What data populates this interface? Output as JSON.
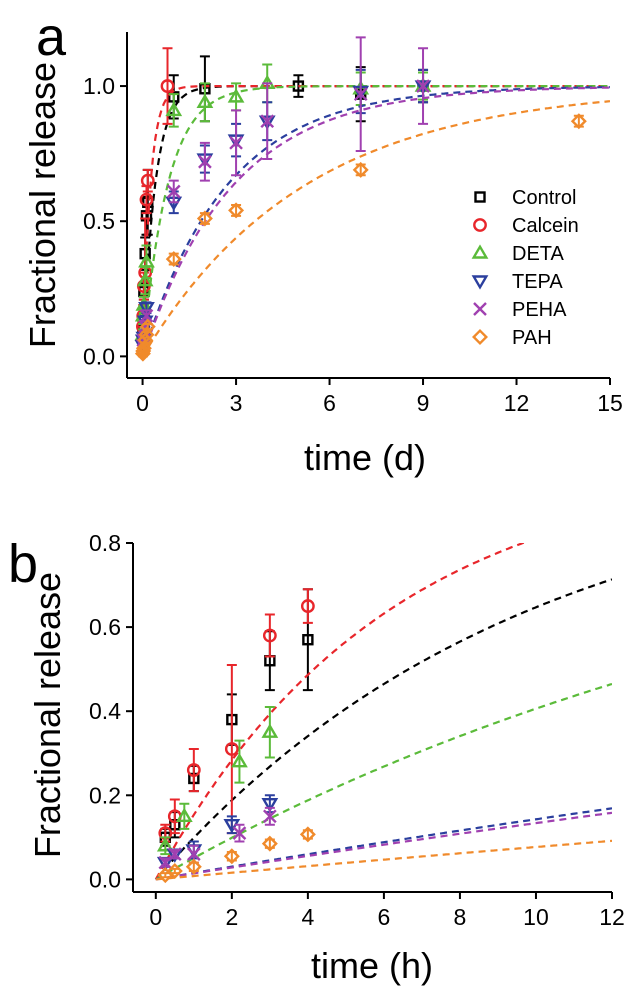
{
  "chart_data": [
    {
      "type": "scatter",
      "panel": "a",
      "xlabel": "time (d)",
      "ylabel": "Fractional release",
      "xlim": [
        -0.5,
        15
      ],
      "ylim": [
        -0.08,
        1.2
      ],
      "xticks": [
        0,
        3,
        6,
        9,
        12,
        15
      ],
      "yticks": [
        0.0,
        0.5,
        1.0
      ],
      "ytick_labels": [
        "0.0",
        "0.5",
        "1.0"
      ],
      "legend": {
        "placement": "right",
        "entries": [
          "Control",
          "Calcein",
          "DETA",
          "TEPA",
          "PEHA",
          "PAH"
        ]
      },
      "series": [
        {
          "name": "Control",
          "color": "#000000",
          "marker": "square",
          "x": [
            0.0104,
            0.0208,
            0.0417,
            0.0833,
            0.125,
            0.1667,
            1,
            2,
            5,
            7,
            9
          ],
          "y": [
            0.1,
            0.13,
            0.24,
            0.38,
            0.52,
            0.57,
            0.96,
            0.99,
            1.0,
            0.97,
            1.0
          ],
          "err": [
            0.02,
            0.03,
            0.03,
            0.06,
            0.07,
            0.12,
            0.08,
            0.12,
            0.04,
            0.1,
            0.06
          ],
          "fit": "0:0.40"
        },
        {
          "name": "Calcein",
          "color": "#e8262b",
          "marker": "circle",
          "x": [
            0.0104,
            0.0208,
            0.0417,
            0.0833,
            0.125,
            0.1667,
            0.8
          ],
          "y": [
            0.11,
            0.15,
            0.26,
            0.31,
            0.58,
            0.65,
            1.0
          ],
          "err": [
            0.02,
            0.04,
            0.05,
            0.2,
            0.05,
            0.04,
            0.14
          ],
          "fit": "1:0.25"
        },
        {
          "name": "DETA",
          "color": "#5bbb3a",
          "marker": "triangle-up",
          "x": [
            0.0104,
            0.0208,
            0.0417,
            0.0833,
            0.125,
            1,
            2,
            3,
            4,
            7,
            9
          ],
          "y": [
            0.08,
            0.15,
            0.19,
            0.28,
            0.35,
            0.91,
            0.94,
            0.96,
            1.01,
            0.99,
            1.0
          ],
          "err": [
            0.02,
            0.03,
            0.03,
            0.05,
            0.06,
            0.06,
            0.07,
            0.05,
            0.07,
            0.06,
            0.05
          ],
          "fit": "2:0.80"
        },
        {
          "name": "TEPA",
          "color": "#2b3f9e",
          "marker": "triangle-down",
          "x": [
            0.0104,
            0.0208,
            0.0417,
            0.0833,
            0.125,
            1,
            2,
            3,
            4,
            7,
            9
          ],
          "y": [
            0.04,
            0.06,
            0.07,
            0.13,
            0.18,
            0.57,
            0.73,
            0.8,
            0.87,
            0.98,
            1.0
          ],
          "err": [
            0.01,
            0.01,
            0.02,
            0.02,
            0.02,
            0.04,
            0.05,
            0.06,
            0.07,
            0.08,
            0.06
          ],
          "fit": "3:2.7"
        },
        {
          "name": "PEHA",
          "color": "#a040b0",
          "marker": "cross",
          "x": [
            0.0104,
            0.0208,
            0.0417,
            0.0833,
            0.125,
            1,
            2,
            3,
            4,
            7,
            9
          ],
          "y": [
            0.04,
            0.06,
            0.06,
            0.11,
            0.15,
            0.61,
            0.72,
            0.79,
            0.87,
            0.97,
            1.0
          ],
          "err": [
            0.01,
            0.01,
            0.02,
            0.02,
            0.02,
            0.04,
            0.07,
            0.12,
            0.14,
            0.21,
            0.14
          ],
          "fit": "4:2.9"
        },
        {
          "name": "PAH",
          "color": "#f08a2b",
          "marker": "diamond",
          "x": [
            0.0104,
            0.0208,
            0.0417,
            0.0833,
            0.125,
            0.1667,
            1,
            2,
            3,
            7,
            14
          ],
          "y": [
            0.01,
            0.02,
            0.03,
            0.06,
            0.08,
            0.11,
            0.36,
            0.51,
            0.54,
            0.69,
            0.87
          ],
          "err": [
            0.01,
            0.01,
            0.01,
            0.01,
            0.01,
            0.01,
            0.02,
            0.02,
            0.02,
            0.02,
            0.02
          ],
          "fit": "5:5.2"
        }
      ]
    },
    {
      "type": "scatter",
      "panel": "b",
      "xlabel": "time (h)",
      "ylabel": "Fractional release",
      "xlim": [
        -0.6,
        12
      ],
      "ylim": [
        -0.03,
        0.8
      ],
      "xticks": [
        0,
        2,
        4,
        6,
        8,
        10,
        12
      ],
      "yticks": [
        0.0,
        0.2,
        0.4,
        0.6,
        0.8
      ],
      "ytick_labels": [
        "0.0",
        "0.2",
        "0.4",
        "0.6",
        "0.8"
      ],
      "series": [
        {
          "name": "Control",
          "color": "#000000",
          "marker": "square",
          "x": [
            0.25,
            0.5,
            1,
            2,
            3,
            4
          ],
          "y": [
            0.1,
            0.13,
            0.24,
            0.38,
            0.52,
            0.57
          ],
          "err": [
            0.02,
            0.03,
            0.03,
            0.06,
            0.07,
            0.12
          ],
          "fit": "0:0.40"
        },
        {
          "name": "Calcein",
          "color": "#e8262b",
          "marker": "circle",
          "x": [
            0.25,
            0.5,
            1,
            2,
            3,
            4
          ],
          "y": [
            0.11,
            0.15,
            0.26,
            0.31,
            0.58,
            0.65
          ],
          "err": [
            0.02,
            0.04,
            0.05,
            0.2,
            0.05,
            0.04
          ],
          "fit": "1:0.25"
        },
        {
          "name": "DETA",
          "color": "#5bbb3a",
          "marker": "triangle-up",
          "x": [
            0.25,
            0.75,
            2.2,
            3
          ],
          "y": [
            0.08,
            0.15,
            0.28,
            0.35
          ],
          "err": [
            0.02,
            0.03,
            0.05,
            0.06
          ],
          "fit": "2:0.80"
        },
        {
          "name": "TEPA",
          "color": "#2b3f9e",
          "marker": "triangle-down",
          "x": [
            0.25,
            0.5,
            1,
            2,
            3
          ],
          "y": [
            0.04,
            0.06,
            0.07,
            0.13,
            0.18
          ],
          "err": [
            0.01,
            0.01,
            0.02,
            0.02,
            0.02
          ],
          "fit": "3:2.7"
        },
        {
          "name": "PEHA",
          "color": "#a040b0",
          "marker": "cross",
          "x": [
            0.25,
            0.5,
            1,
            2.2,
            3
          ],
          "y": [
            0.04,
            0.06,
            0.06,
            0.11,
            0.15
          ],
          "err": [
            0.01,
            0.01,
            0.02,
            0.02,
            0.02
          ],
          "fit": "4:2.9"
        },
        {
          "name": "PAH",
          "color": "#f08a2b",
          "marker": "diamond",
          "x": [
            0.25,
            0.5,
            1,
            2,
            3,
            4
          ],
          "y": [
            0.01,
            0.02,
            0.03,
            0.055,
            0.085,
            0.107
          ],
          "err": [
            0.005,
            0.005,
            0.01,
            0.01,
            0.01,
            0.01
          ],
          "fit": "5:5.2"
        }
      ]
    }
  ]
}
